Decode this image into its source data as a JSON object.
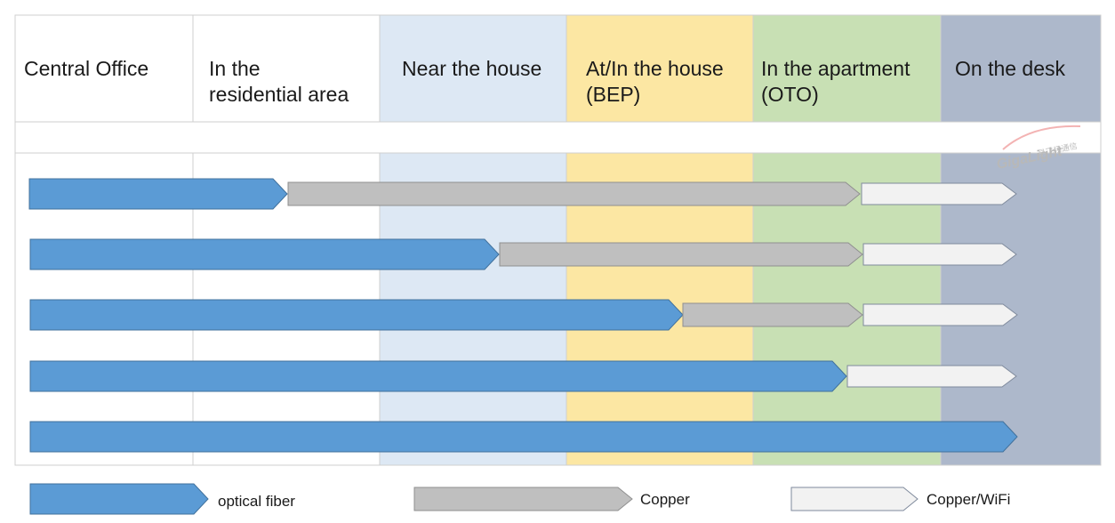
{
  "columns": [
    {
      "lines": [
        "Central Office"
      ],
      "color": "#ffffff"
    },
    {
      "lines": [
        "In the",
        "residential area"
      ],
      "color": "#ffffff"
    },
    {
      "lines": [
        "Near the house"
      ],
      "color": "#dde8f4"
    },
    {
      "lines": [
        "At/In the house",
        "(BEP)"
      ],
      "color": "#fce7a3"
    },
    {
      "lines": [
        "In the apartment",
        "(OTO)"
      ],
      "color": "#c8e0b4"
    },
    {
      "lines": [
        "On the desk"
      ],
      "color": "#adb8cb"
    }
  ],
  "watermark": {
    "text": "GigaLight",
    "subtext": "易飞扬通信"
  },
  "colors": {
    "fiber": "#5b9bd5",
    "fiber_stroke": "#41719c",
    "copper": "#bfbfbf",
    "copper_stroke": "#8f8f8f",
    "wifi": "#f2f2f2",
    "wifi_stroke": "#7f8a9c",
    "grid": "#cfcfcf"
  },
  "legend": [
    {
      "type": "fiber",
      "label": "optical fiber"
    },
    {
      "type": "copper",
      "label": "Copper"
    },
    {
      "type": "wifi",
      "label": "Copper/WiFi"
    }
  ]
}
